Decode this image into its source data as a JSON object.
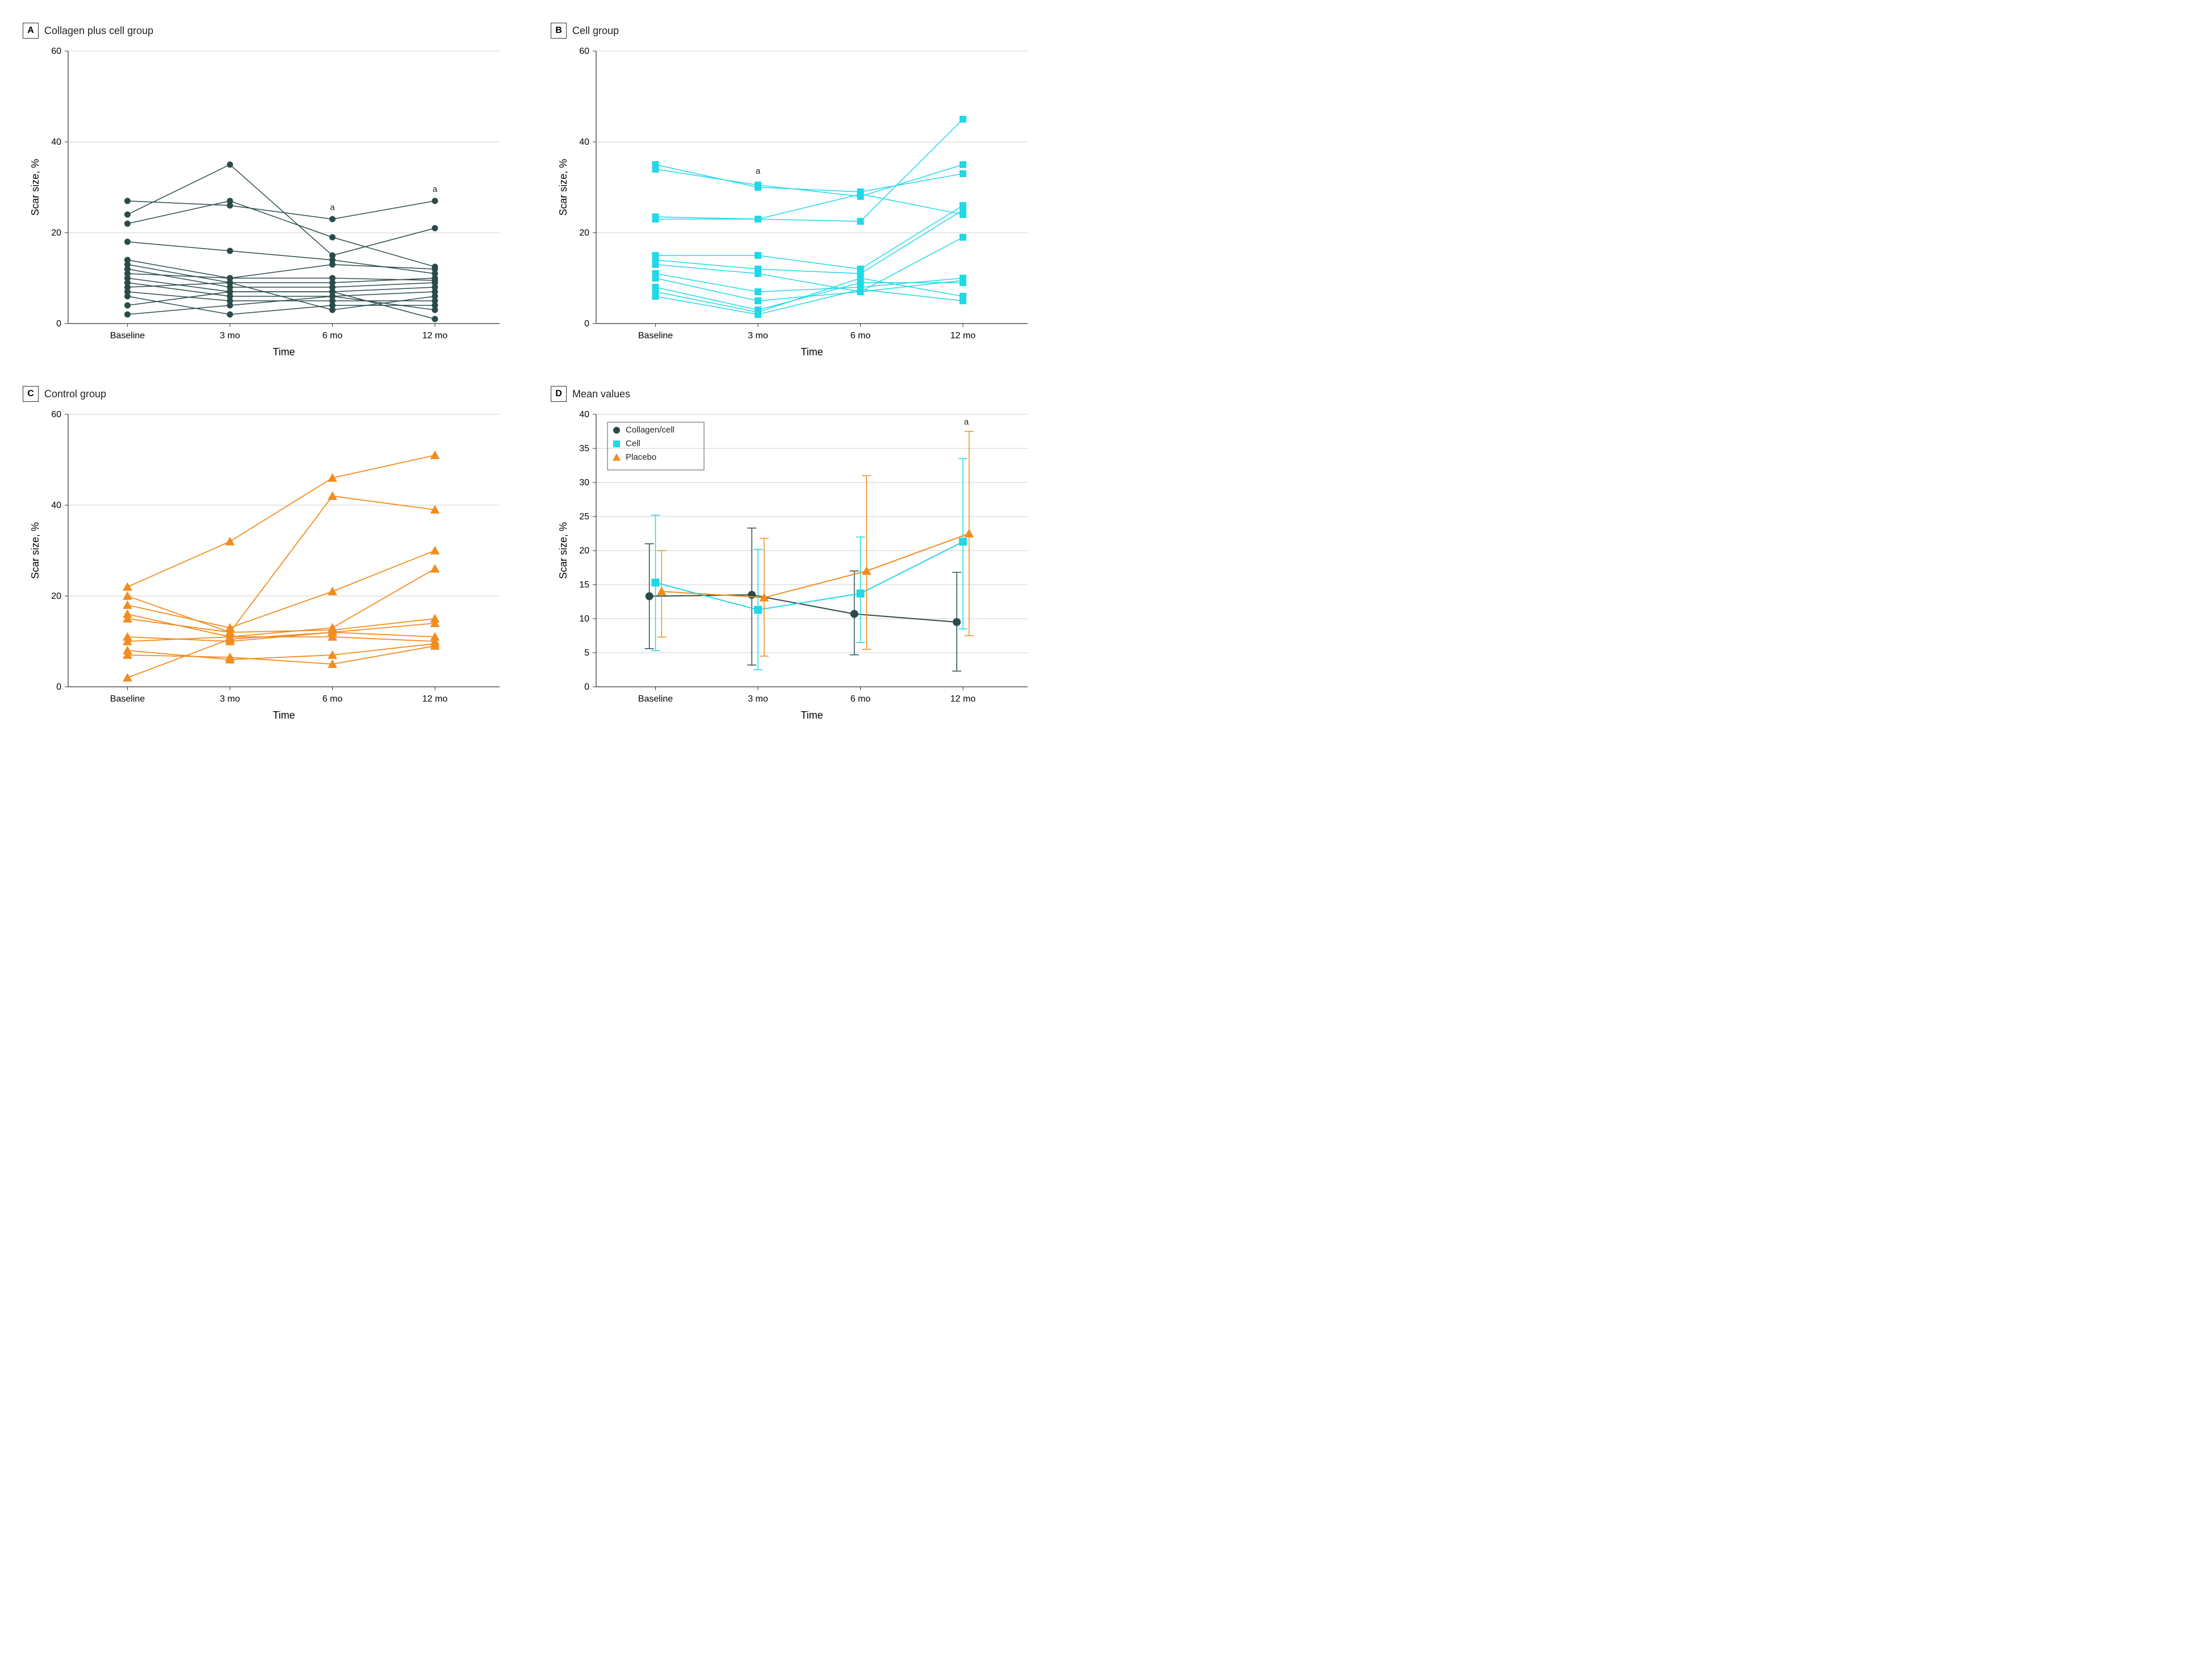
{
  "global": {
    "x_categories": [
      "Baseline",
      "3 mo",
      "6 mo",
      "12 mo"
    ],
    "x_label": "Time",
    "y_label": "Scar size, %",
    "annotation_letter": "a",
    "background_color": "#ffffff",
    "grid_color": "#d0d0d0",
    "axis_color": "#333333",
    "font_family": "Helvetica Neue, Arial, sans-serif",
    "tick_fontsize": 16,
    "label_fontsize": 18,
    "title_fontsize": 18
  },
  "panels": {
    "A": {
      "letter": "A",
      "title": "Collagen plus cell group",
      "type": "line-scatter",
      "color": "#2b4b4b",
      "marker": "circle",
      "marker_size": 5.5,
      "line_width": 1.5,
      "ylim": [
        0,
        60
      ],
      "ytick_step": 20,
      "annotations": [
        {
          "x_index": 2,
          "y": 25,
          "text": "a"
        },
        {
          "x_index": 3,
          "y": 29,
          "text": "a"
        }
      ],
      "series": [
        [
          27,
          26,
          23,
          27
        ],
        [
          24,
          35,
          15,
          21
        ],
        [
          22,
          27,
          19,
          12.5
        ],
        [
          18,
          16,
          14,
          11
        ],
        [
          14,
          10,
          13,
          12
        ],
        [
          13,
          9,
          9,
          10
        ],
        [
          12,
          8,
          8,
          9
        ],
        [
          11,
          10,
          10,
          9.5
        ],
        [
          10,
          7,
          7,
          8
        ],
        [
          9,
          6,
          6,
          7
        ],
        [
          8,
          9,
          3,
          6
        ],
        [
          7,
          5,
          5,
          5
        ],
        [
          6,
          2,
          4,
          4
        ],
        [
          4,
          7,
          7,
          1
        ],
        [
          2,
          4,
          6,
          3
        ]
      ]
    },
    "B": {
      "letter": "B",
      "title": "Cell group",
      "type": "line-scatter",
      "color": "#20d8e8",
      "marker": "square",
      "marker_size": 6,
      "line_width": 1.5,
      "ylim": [
        0,
        60
      ],
      "ytick_step": 20,
      "annotations": [
        {
          "x_index": 1,
          "y": 33,
          "text": "a"
        }
      ],
      "series": [
        [
          35,
          30,
          29,
          33
        ],
        [
          34,
          30.5,
          28,
          35
        ],
        [
          23.5,
          23,
          22.5,
          45
        ],
        [
          23,
          23,
          28.5,
          24
        ],
        [
          15,
          15,
          12,
          26
        ],
        [
          14,
          12,
          11,
          25
        ],
        [
          13,
          11,
          7,
          19
        ],
        [
          11,
          7,
          8,
          10
        ],
        [
          10,
          5,
          7,
          9.5
        ],
        [
          8,
          3,
          9,
          9
        ],
        [
          7,
          2.5,
          10,
          6
        ],
        [
          6,
          2,
          7.5,
          5
        ]
      ]
    },
    "C": {
      "letter": "C",
      "title": "Control group",
      "type": "line-scatter",
      "color": "#f28c1e",
      "marker": "triangle",
      "marker_size": 7,
      "line_width": 1.8,
      "ylim": [
        0,
        60
      ],
      "ytick_step": 20,
      "annotations": [],
      "series": [
        [
          22,
          32,
          46,
          51
        ],
        [
          20,
          12,
          42,
          39
        ],
        [
          18,
          13,
          21,
          30
        ],
        [
          16,
          11,
          13,
          26
        ],
        [
          15,
          12,
          12.5,
          15
        ],
        [
          11,
          10,
          12,
          14
        ],
        [
          10,
          11,
          11,
          10
        ],
        [
          8,
          6,
          7,
          9.5
        ],
        [
          7,
          6.5,
          5,
          9
        ],
        [
          2,
          10.5,
          12,
          11
        ]
      ]
    },
    "D": {
      "letter": "D",
      "title": "Mean values",
      "type": "mean-errorbar",
      "ylim": [
        0,
        40
      ],
      "ytick_step": 5,
      "line_width": 2,
      "marker_size": 7,
      "annotations": [
        {
          "x_index": 3,
          "y": 38.5,
          "text": "a"
        }
      ],
      "legend": {
        "position": "top-left-inside",
        "items": [
          {
            "label": "Collagen/cell",
            "color": "#2b4b4b",
            "marker": "circle"
          },
          {
            "label": "Cell",
            "color": "#20d8e8",
            "marker": "square"
          },
          {
            "label": "Placebo",
            "color": "#f28c1e",
            "marker": "triangle"
          }
        ]
      },
      "groups": [
        {
          "name": "Collagen/cell",
          "color": "#2b4b4b",
          "marker": "circle",
          "x_offset": -0.06,
          "mean": [
            13.3,
            13.5,
            10.7,
            9.5
          ],
          "err_lo": [
            5.6,
            3.2,
            4.7,
            2.3
          ],
          "err_hi": [
            21.0,
            23.3,
            17.0,
            16.8
          ]
        },
        {
          "name": "Cell",
          "color": "#20d8e8",
          "marker": "square",
          "x_offset": 0.0,
          "mean": [
            15.3,
            11.3,
            13.7,
            21.3
          ],
          "err_lo": [
            5.3,
            2.5,
            6.5,
            8.5
          ],
          "err_hi": [
            25.2,
            20.2,
            22.0,
            33.5
          ]
        },
        {
          "name": "Placebo",
          "color": "#f28c1e",
          "marker": "triangle",
          "x_offset": 0.06,
          "mean": [
            14.0,
            13.1,
            17.0,
            22.5
          ],
          "err_lo": [
            7.3,
            4.5,
            5.5,
            7.5
          ],
          "err_hi": [
            20.0,
            21.8,
            31.0,
            37.5
          ]
        }
      ]
    }
  }
}
